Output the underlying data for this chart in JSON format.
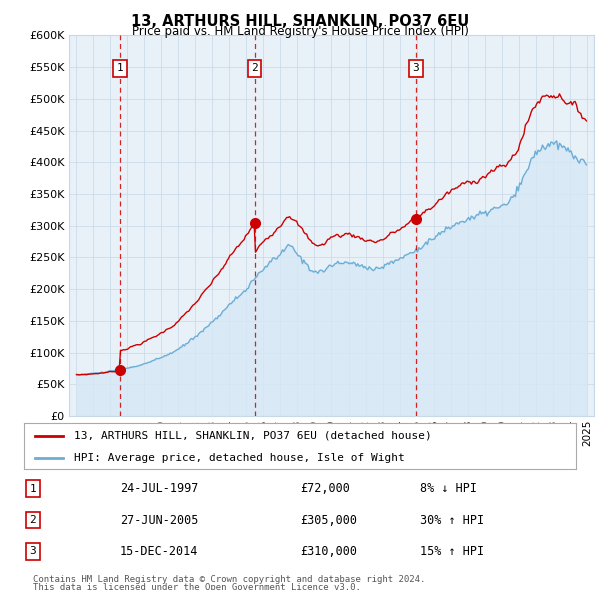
{
  "title": "13, ARTHURS HILL, SHANKLIN, PO37 6EU",
  "subtitle": "Price paid vs. HM Land Registry's House Price Index (HPI)",
  "legend_line1": "13, ARTHURS HILL, SHANKLIN, PO37 6EU (detached house)",
  "legend_line2": "HPI: Average price, detached house, Isle of Wight",
  "footer1": "Contains HM Land Registry data © Crown copyright and database right 2024.",
  "footer2": "This data is licensed under the Open Government Licence v3.0.",
  "transactions": [
    {
      "num": 1,
      "date": "24-JUL-1997",
      "price": 72000,
      "hpi_rel": "8% ↓ HPI",
      "year": 1997.58
    },
    {
      "num": 2,
      "date": "27-JUN-2005",
      "price": 305000,
      "hpi_rel": "30% ↑ HPI",
      "year": 2005.49
    },
    {
      "num": 3,
      "date": "15-DEC-2014",
      "price": 310000,
      "hpi_rel": "15% ↑ HPI",
      "year": 2014.96
    }
  ],
  "red_color": "#cc0000",
  "blue_color": "#6baed6",
  "blue_fill_color": "#d6e8f5",
  "chart_bg_color": "#e8f1f8",
  "dashed_color": "#cc0000",
  "background_color": "#ffffff",
  "grid_color": "#c8d8e8",
  "ylim": [
    0,
    600000
  ],
  "xlim_start": 1994.6,
  "xlim_end": 2025.4,
  "yticks": [
    0,
    50000,
    100000,
    150000,
    200000,
    250000,
    300000,
    350000,
    400000,
    450000,
    500000,
    550000,
    600000
  ],
  "ytick_labels": [
    "£0",
    "£50K",
    "£100K",
    "£150K",
    "£200K",
    "£250K",
    "£300K",
    "£350K",
    "£400K",
    "£450K",
    "£500K",
    "£550K",
    "£600K"
  ],
  "xticks": [
    1995,
    1996,
    1997,
    1998,
    1999,
    2000,
    2001,
    2002,
    2003,
    2004,
    2005,
    2006,
    2007,
    2008,
    2009,
    2010,
    2011,
    2012,
    2013,
    2014,
    2015,
    2016,
    2017,
    2018,
    2019,
    2020,
    2021,
    2022,
    2023,
    2024,
    2025
  ]
}
